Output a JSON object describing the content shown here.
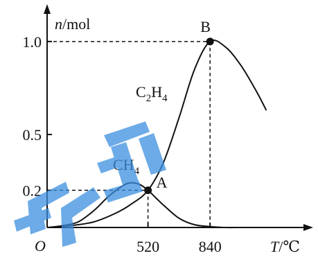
{
  "chart_data": {
    "type": "line",
    "xlabel": "T/℃",
    "ylabel": "n/mol",
    "origin_label": "O",
    "x_tick_labels": [
      "520",
      "840"
    ],
    "y_tick_labels": [
      "1.0",
      "0.5",
      "0.2"
    ],
    "x_ticks": [
      520,
      840
    ],
    "y_ticks": [
      1.0,
      0.5,
      0.2
    ],
    "xlim": [
      0,
      1200
    ],
    "ylim": [
      0,
      1.1
    ],
    "grid": false,
    "series": [
      {
        "name": "C2H4",
        "label_main": "C",
        "label_sub1": "2",
        "label_mid": "H",
        "label_sub2": "4",
        "x": [
          0,
          120,
          240,
          360,
          440,
          520,
          600,
          680,
          760,
          840,
          920,
          1000,
          1080,
          1130
        ],
        "y": [
          0.0,
          0.01,
          0.03,
          0.08,
          0.13,
          0.2,
          0.35,
          0.59,
          0.85,
          1.0,
          0.97,
          0.87,
          0.73,
          0.63
        ]
      },
      {
        "name": "CH4",
        "label_main": "CH",
        "label_sub": "4",
        "x": [
          0,
          80,
          160,
          240,
          320,
          400,
          440,
          480,
          520,
          560,
          600,
          680,
          760,
          840,
          920,
          1000,
          1130
        ],
        "y": [
          0.0,
          0.01,
          0.03,
          0.09,
          0.17,
          0.23,
          0.24,
          0.23,
          0.2,
          0.16,
          0.12,
          0.05,
          0.015,
          0.005,
          0.0,
          0.0,
          0.0
        ]
      }
    ],
    "points": [
      {
        "label": "A",
        "x": 520,
        "y": 0.2
      },
      {
        "label": "B",
        "x": 840,
        "y": 1.0
      }
    ],
    "colors": {
      "ink": "#111111",
      "watermark": "#3b8fe0"
    }
  }
}
